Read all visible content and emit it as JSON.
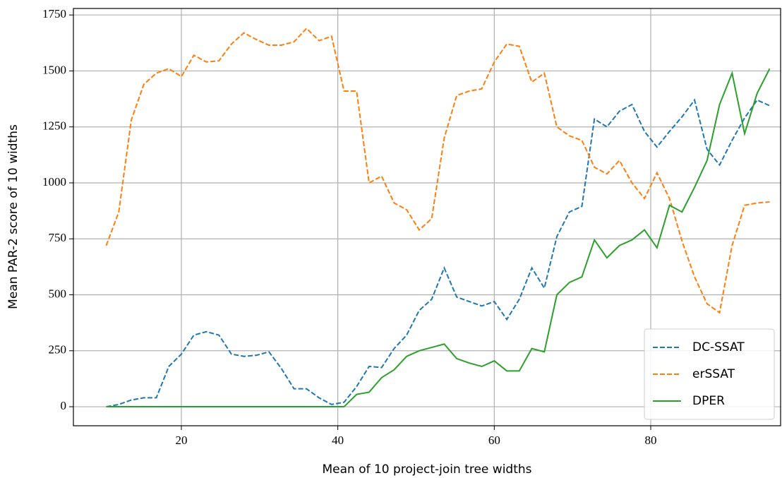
{
  "chart_data": {
    "type": "line",
    "xlabel": "Mean of 10 project-join tree widths",
    "ylabel": "Mean PAR-2 score of 10 widths",
    "x": [
      10.4,
      12.0,
      13.6,
      15.2,
      16.8,
      18.4,
      20.0,
      21.6,
      23.2,
      24.8,
      26.4,
      28.0,
      29.6,
      31.2,
      32.8,
      34.4,
      36.0,
      37.6,
      39.2,
      40.8,
      42.4,
      44.0,
      45.6,
      47.2,
      48.8,
      50.4,
      52.0,
      53.6,
      55.2,
      56.8,
      58.4,
      60.0,
      61.6,
      63.2,
      64.8,
      66.4,
      68.0,
      69.6,
      71.2,
      72.8,
      74.4,
      76.0,
      77.6,
      79.2,
      80.8,
      82.4,
      84.0,
      85.6,
      87.2,
      88.8,
      90.4,
      92.0,
      93.6,
      95.2
    ],
    "series": [
      {
        "name": "DC-SSAT",
        "color": "#1f77b4",
        "linestyle": "dashed",
        "values": [
          0,
          10,
          30,
          40,
          40,
          180,
          235,
          320,
          335,
          320,
          235,
          225,
          230,
          245,
          170,
          80,
          80,
          40,
          10,
          20,
          90,
          180,
          175,
          260,
          320,
          430,
          480,
          620,
          490,
          470,
          450,
          470,
          390,
          480,
          620,
          530,
          760,
          870,
          895,
          1285,
          1250,
          1320,
          1350,
          1230,
          1160,
          1230,
          1295,
          1370,
          1150,
          1080,
          1190,
          1290,
          1370,
          1345
        ]
      },
      {
        "name": "erSSAT",
        "color": "#ff7f0e",
        "linestyle": "dashed",
        "values": [
          720,
          870,
          1280,
          1440,
          1490,
          1510,
          1475,
          1570,
          1540,
          1545,
          1620,
          1670,
          1640,
          1615,
          1615,
          1630,
          1690,
          1635,
          1655,
          1410,
          1410,
          1000,
          1030,
          910,
          880,
          790,
          840,
          1200,
          1390,
          1410,
          1420,
          1540,
          1620,
          1610,
          1450,
          1490,
          1250,
          1210,
          1190,
          1070,
          1040,
          1100,
          1000,
          930,
          1045,
          930,
          740,
          580,
          460,
          420,
          720,
          900,
          910,
          915
        ]
      },
      {
        "name": "DPER",
        "color": "#2ca02c",
        "linestyle": "solid",
        "values": [
          0,
          0,
          0,
          0,
          0,
          0,
          0,
          0,
          0,
          0,
          0,
          0,
          0,
          0,
          0,
          0,
          0,
          0,
          0,
          0,
          55,
          65,
          130,
          165,
          225,
          250,
          265,
          280,
          215,
          195,
          180,
          205,
          160,
          160,
          260,
          245,
          500,
          555,
          580,
          745,
          665,
          720,
          745,
          790,
          710,
          900,
          870,
          980,
          1100,
          1350,
          1490,
          1220,
          1400,
          1510
        ]
      }
    ],
    "xlim": [
      6.2,
      96.6
    ],
    "xticks": [
      20,
      40,
      60,
      80
    ],
    "ylim": [
      -85,
      1779
    ],
    "yticks": [
      0,
      250,
      500,
      750,
      1000,
      1250,
      1500,
      1750
    ],
    "grid": true,
    "legend": "lower right"
  }
}
